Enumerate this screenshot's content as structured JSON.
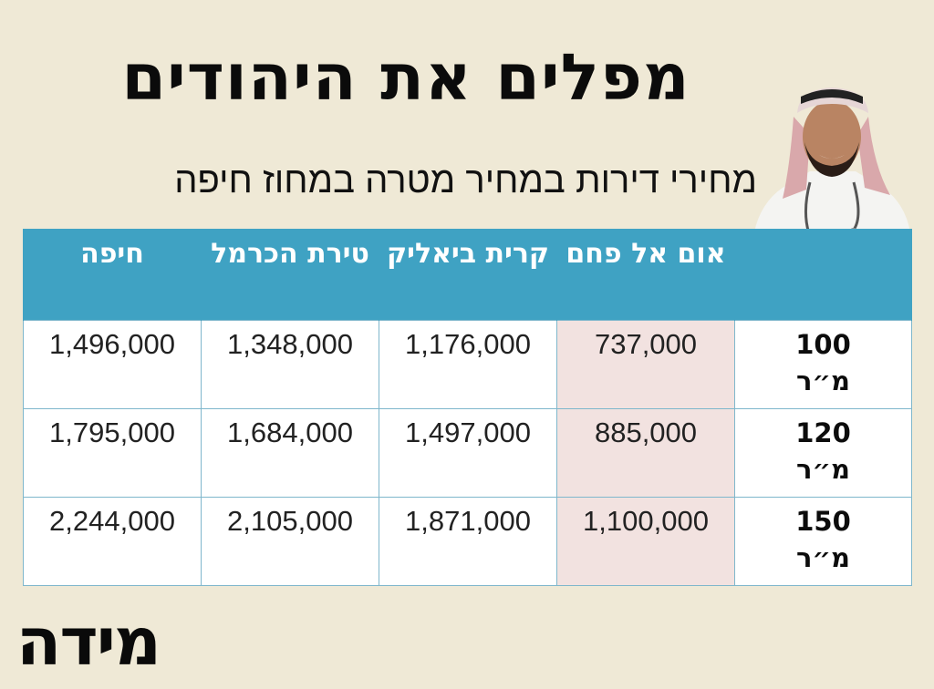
{
  "title": "מפלים את היהודים",
  "subtitle": "מחירי דירות במחיר מטרה במחוז חיפה",
  "table": {
    "headers": [
      "",
      "אום אל פחם",
      "קרית ביאליק",
      "טירת הכרמל",
      "חיפה"
    ],
    "rows": [
      {
        "label": "100\nמ״ר",
        "values": [
          "737,000",
          "1,176,000",
          "1,348,000",
          "1,496,000"
        ]
      },
      {
        "label": "120\nמ״ר",
        "values": [
          "885,000",
          "1,497,000",
          "1,684,000",
          "1,795,000"
        ]
      },
      {
        "label": "150\nמ״ר",
        "values": [
          "1,100,000",
          "1,871,000",
          "2,105,000",
          "2,244,000"
        ]
      }
    ]
  },
  "logo": "מידה",
  "colors": {
    "background": "#efe9d6",
    "header": "#3fa2c3",
    "highlight_column": "#f2e2e0"
  },
  "figure_icon": "man-in-keffiyeh-photo"
}
